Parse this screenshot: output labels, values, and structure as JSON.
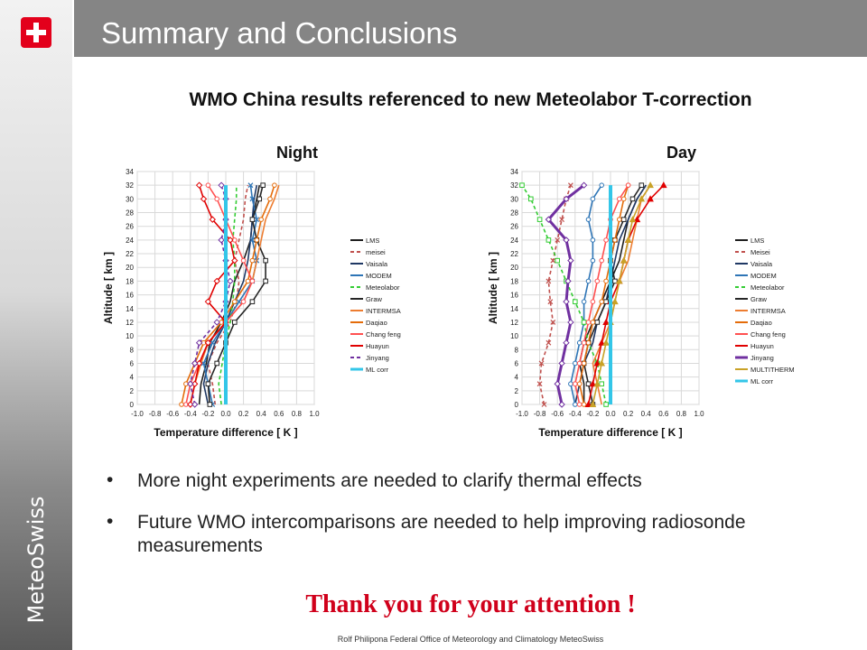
{
  "header": {
    "title": "Summary and Conclusions"
  },
  "sidebar": {
    "brand": "MeteoSwiss"
  },
  "subtitle": "WMO China results referenced to new Meteolabor T-correction",
  "panels": {
    "night_label": "Night",
    "day_label": "Day"
  },
  "bullets": [
    "More night experiments are needed to clarify thermal effects",
    "Future WMO intercomparisons are needed to help improving radiosonde measurements"
  ],
  "bullet_symbol": "•",
  "thanks": "Thank you for your attention !",
  "footer": "Rolf Philipona   Federal Office of Meteorology and Climatology   MeteoSwiss",
  "chart_data": [
    {
      "type": "line",
      "title": "Night",
      "xlabel": "Temperature difference [ K ]",
      "ylabel": "Altitude  [ km ]",
      "xlim": [
        -1.0,
        1.0
      ],
      "ylim": [
        0,
        34
      ],
      "xticks": [
        -1.0,
        -0.8,
        -0.6,
        -0.4,
        -0.2,
        0.0,
        0.2,
        0.4,
        0.6,
        0.8,
        1.0
      ],
      "yticks": [
        0,
        2,
        4,
        6,
        8,
        10,
        12,
        14,
        16,
        18,
        20,
        22,
        24,
        26,
        28,
        30,
        32,
        34
      ],
      "grid": true,
      "legend": "right",
      "series": [
        {
          "name": "LMS",
          "color": "#1f1f1f",
          "dash": "",
          "marker": "none",
          "y": [
            0,
            3,
            6,
            9,
            12,
            15,
            18,
            21,
            24,
            27,
            30,
            32
          ],
          "x": [
            -0.3,
            -0.28,
            -0.22,
            -0.18,
            -0.05,
            0.05,
            0.1,
            0.2,
            0.28,
            0.3,
            0.35,
            0.38
          ]
        },
        {
          "name": "meisei",
          "color": "#c0504d",
          "dash": "4,3",
          "marker": "none",
          "y": [
            0,
            3,
            6,
            9,
            12,
            15,
            18,
            21,
            24,
            27,
            30,
            32
          ],
          "x": [
            -0.12,
            -0.15,
            -0.2,
            -0.1,
            0.05,
            0.12,
            0.15,
            0.1,
            0.15,
            0.2,
            0.22,
            0.25
          ]
        },
        {
          "name": "Vaisala",
          "color": "#1f3864",
          "dash": "",
          "marker": "none",
          "y": [
            0,
            3,
            6,
            9,
            12,
            15,
            18,
            21,
            24,
            27,
            30,
            32
          ],
          "x": [
            -0.2,
            -0.25,
            -0.2,
            -0.12,
            0.0,
            0.1,
            0.2,
            0.25,
            0.28,
            0.3,
            0.32,
            0.35
          ]
        },
        {
          "name": "MODEM",
          "color": "#2e75b6",
          "dash": "",
          "marker": "x",
          "y": [
            0,
            3,
            6,
            9,
            12,
            15,
            18,
            21,
            24,
            27,
            30,
            32
          ],
          "x": [
            -0.15,
            -0.2,
            -0.25,
            -0.15,
            0.0,
            0.15,
            0.3,
            0.35,
            0.3,
            0.35,
            0.3,
            0.28
          ]
        },
        {
          "name": "Meteolabor",
          "color": "#33cc33",
          "dash": "4,3",
          "marker": "none",
          "y": [
            0,
            3,
            6,
            9,
            12,
            15,
            18,
            21,
            24,
            27,
            30,
            32
          ],
          "x": [
            -0.05,
            -0.08,
            -0.04,
            0.0,
            0.05,
            0.08,
            0.1,
            0.1,
            0.08,
            0.1,
            0.12,
            0.12
          ]
        },
        {
          "name": "Graw",
          "color": "#262626",
          "dash": "",
          "marker": "square",
          "y": [
            0,
            3,
            6,
            9,
            12,
            15,
            18,
            21,
            24,
            27,
            30,
            32
          ],
          "x": [
            -0.18,
            -0.2,
            -0.1,
            0.0,
            0.1,
            0.3,
            0.45,
            0.45,
            0.35,
            0.3,
            0.38,
            0.42
          ]
        },
        {
          "name": "INTERMSA",
          "color": "#ed7d31",
          "dash": "",
          "marker": "none",
          "y": [
            0,
            3,
            6,
            9,
            12,
            15,
            18,
            21,
            24,
            27,
            30,
            32
          ],
          "x": [
            -0.4,
            -0.35,
            -0.28,
            -0.2,
            0.0,
            0.2,
            0.3,
            0.35,
            0.4,
            0.45,
            0.55,
            0.6
          ]
        },
        {
          "name": "Daqiao",
          "color": "#e46c0a",
          "dash": "",
          "marker": "circle",
          "y": [
            0,
            3,
            6,
            9,
            12,
            15,
            18,
            21,
            24,
            27,
            30,
            32
          ],
          "x": [
            -0.5,
            -0.45,
            -0.35,
            -0.25,
            -0.05,
            0.1,
            0.25,
            0.3,
            0.35,
            0.4,
            0.5,
            0.55
          ]
        },
        {
          "name": "Chang feng",
          "color": "#ff5050",
          "dash": "",
          "marker": "circle",
          "y": [
            0,
            3,
            6,
            9,
            12,
            15,
            18,
            21,
            24,
            27,
            30,
            32
          ],
          "x": [
            -0.45,
            -0.4,
            -0.3,
            -0.2,
            0.0,
            0.2,
            0.3,
            0.2,
            0.1,
            0.0,
            -0.1,
            -0.2
          ]
        },
        {
          "name": "Huayun",
          "color": "#e00000",
          "dash": "",
          "marker": "diamond",
          "y": [
            0,
            3,
            6,
            9,
            12,
            15,
            18,
            21,
            24,
            27,
            30,
            32
          ],
          "x": [
            -0.4,
            -0.35,
            -0.3,
            -0.2,
            0.0,
            -0.2,
            -0.1,
            0.1,
            0.05,
            -0.15,
            -0.25,
            -0.3
          ]
        },
        {
          "name": "Jinyang",
          "color": "#7030a0",
          "dash": "4,3",
          "marker": "diamond",
          "y": [
            0,
            3,
            6,
            9,
            12,
            15,
            18,
            21,
            24,
            27,
            30,
            32
          ],
          "x": [
            -0.35,
            -0.4,
            -0.35,
            -0.3,
            -0.1,
            0.0,
            0.05,
            0.0,
            -0.05,
            0.0,
            0.0,
            -0.05
          ]
        },
        {
          "name": "ML corr",
          "color": "#33c6e8",
          "dash": "",
          "marker": "none",
          "width": 4,
          "y": [
            0,
            32
          ],
          "x": [
            0,
            0
          ]
        }
      ]
    },
    {
      "type": "line",
      "title": "Day",
      "xlabel": "Temperature difference [ K ]",
      "ylabel": "Altitude  [ km ]",
      "xlim": [
        -1.0,
        1.0
      ],
      "ylim": [
        0,
        34
      ],
      "xticks": [
        -1.0,
        -0.8,
        -0.6,
        -0.4,
        -0.2,
        0.0,
        0.2,
        0.4,
        0.6,
        0.8,
        1.0
      ],
      "yticks": [
        0,
        2,
        4,
        6,
        8,
        10,
        12,
        14,
        16,
        18,
        20,
        22,
        24,
        26,
        28,
        30,
        32,
        34
      ],
      "grid": true,
      "legend": "right",
      "series": [
        {
          "name": "LMS",
          "color": "#1f1f1f",
          "dash": "",
          "marker": "none",
          "y": [
            0,
            3,
            6,
            9,
            12,
            15,
            18,
            21,
            24,
            27,
            30,
            32
          ],
          "x": [
            -0.3,
            -0.3,
            -0.35,
            -0.3,
            -0.2,
            -0.1,
            0.0,
            0.1,
            0.15,
            0.2,
            0.3,
            0.4
          ]
        },
        {
          "name": "Meisei",
          "color": "#c0504d",
          "dash": "4,3",
          "marker": "x",
          "y": [
            0,
            3,
            6,
            9,
            12,
            15,
            18,
            21,
            24,
            27,
            30,
            32
          ],
          "x": [
            -0.75,
            -0.8,
            -0.78,
            -0.7,
            -0.65,
            -0.68,
            -0.7,
            -0.65,
            -0.6,
            -0.55,
            -0.5,
            -0.45
          ]
        },
        {
          "name": "Vaisala",
          "color": "#1f3864",
          "dash": "",
          "marker": "none",
          "y": [
            0,
            3,
            6,
            9,
            12,
            15,
            18,
            21,
            24,
            27,
            30,
            32
          ],
          "x": [
            -0.4,
            -0.35,
            -0.3,
            -0.2,
            -0.15,
            -0.05,
            0.0,
            0.05,
            0.1,
            0.2,
            0.3,
            0.4
          ]
        },
        {
          "name": "MODEM",
          "color": "#2e75b6",
          "dash": "",
          "marker": "circle",
          "y": [
            0,
            3,
            6,
            9,
            12,
            15,
            18,
            21,
            24,
            27,
            30,
            32
          ],
          "x": [
            -0.4,
            -0.45,
            -0.4,
            -0.35,
            -0.3,
            -0.3,
            -0.25,
            -0.2,
            -0.2,
            -0.25,
            -0.2,
            -0.1
          ]
        },
        {
          "name": "Meteolabor",
          "color": "#33cc33",
          "dash": "4,3",
          "marker": "square",
          "y": [
            0,
            3,
            6,
            9,
            12,
            15,
            18,
            21,
            24,
            27,
            30,
            32
          ],
          "x": [
            -0.05,
            -0.1,
            -0.15,
            -0.25,
            -0.3,
            -0.4,
            -0.5,
            -0.6,
            -0.7,
            -0.8,
            -0.9,
            -1.0
          ]
        },
        {
          "name": "Graw",
          "color": "#262626",
          "dash": "",
          "marker": "square",
          "y": [
            0,
            3,
            6,
            9,
            12,
            15,
            18,
            21,
            24,
            27,
            30,
            32
          ],
          "x": [
            -0.2,
            -0.25,
            -0.3,
            -0.25,
            -0.15,
            -0.05,
            0.05,
            0.0,
            0.05,
            0.15,
            0.25,
            0.35
          ]
        },
        {
          "name": "INTERMSA",
          "color": "#ed7d31",
          "dash": "",
          "marker": "none",
          "y": [
            0,
            3,
            6,
            9,
            12,
            15,
            18,
            21,
            24,
            27,
            30,
            32
          ],
          "x": [
            -0.1,
            -0.15,
            -0.2,
            -0.1,
            0.0,
            0.05,
            0.1,
            0.2,
            0.25,
            0.3,
            0.35,
            0.45
          ]
        },
        {
          "name": "Daqiao",
          "color": "#e46c0a",
          "dash": "",
          "marker": "circle",
          "y": [
            0,
            3,
            6,
            9,
            12,
            15,
            18,
            21,
            24,
            27,
            30,
            32
          ],
          "x": [
            -0.3,
            -0.35,
            -0.3,
            -0.25,
            -0.2,
            -0.1,
            -0.05,
            0.0,
            0.05,
            0.1,
            0.15,
            0.2
          ]
        },
        {
          "name": "Chang feng",
          "color": "#ff5050",
          "dash": "",
          "marker": "circle",
          "y": [
            0,
            3,
            6,
            9,
            12,
            15,
            18,
            21,
            24,
            27,
            30,
            32
          ],
          "x": [
            -0.35,
            -0.4,
            -0.35,
            -0.3,
            -0.25,
            -0.2,
            -0.15,
            -0.1,
            -0.05,
            0.0,
            0.1,
            0.2
          ]
        },
        {
          "name": "Huayun",
          "color": "#e00000",
          "dash": "",
          "marker": "triangle",
          "y": [
            0,
            3,
            6,
            9,
            12,
            15,
            18,
            21,
            24,
            27,
            30,
            32
          ],
          "x": [
            -0.25,
            -0.2,
            -0.15,
            -0.1,
            -0.05,
            0.0,
            0.1,
            0.15,
            0.2,
            0.3,
            0.45,
            0.6
          ]
        },
        {
          "name": "Jinyang",
          "color": "#7030a0",
          "dash": "",
          "marker": "diamond",
          "width": 3,
          "y": [
            0,
            3,
            6,
            9,
            12,
            15,
            18,
            21,
            24,
            27,
            30,
            32
          ],
          "x": [
            -0.55,
            -0.6,
            -0.55,
            -0.5,
            -0.45,
            -0.5,
            -0.48,
            -0.45,
            -0.5,
            -0.7,
            -0.5,
            -0.3
          ]
        },
        {
          "name": "MULTITHERM",
          "color": "#c9a227",
          "dash": "",
          "marker": "triangle",
          "y": [
            0,
            3,
            6,
            9,
            12,
            15,
            18,
            21,
            24,
            27,
            30,
            32
          ],
          "x": [
            -0.2,
            -0.15,
            -0.1,
            -0.05,
            0.0,
            0.05,
            0.1,
            0.15,
            0.2,
            0.25,
            0.35,
            0.45
          ]
        },
        {
          "name": "ML corr",
          "color": "#33c6e8",
          "dash": "",
          "marker": "none",
          "width": 4,
          "y": [
            0,
            32
          ],
          "x": [
            0,
            0
          ]
        }
      ]
    }
  ]
}
